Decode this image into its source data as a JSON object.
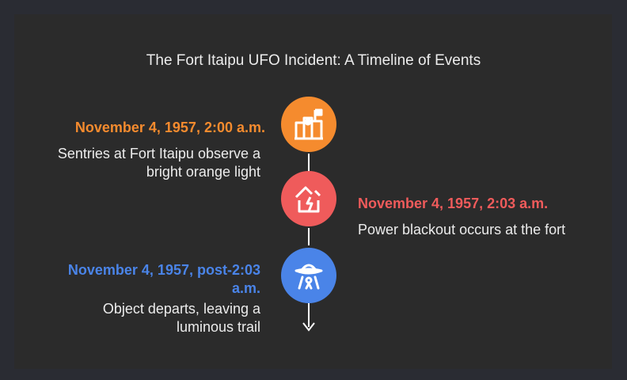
{
  "title": "The Fort Itaipu UFO Incident: A Timeline of Events",
  "events": [
    {
      "date": "November 4, 1957, 2:00 a.m.",
      "description": "Sentries at Fort Itaipu observe a bright orange light",
      "color": "#f58b2e",
      "icon": "fort-icon",
      "side": "left"
    },
    {
      "date": "November 4, 1957, 2:03 a.m.",
      "description": "Power blackout occurs at the fort",
      "color": "#ef5b5b",
      "icon": "broken-house-icon",
      "side": "right"
    },
    {
      "date": "November 4, 1957, post-2:03 a.m.",
      "description": "Object departs, leaving a luminous trail",
      "color": "#4a84e8",
      "icon": "ufo-icon",
      "side": "left"
    }
  ],
  "colors": {
    "background": "#2a2c33",
    "panel": "#2b2b2b",
    "text": "#ececec",
    "connector": "#ffffff"
  }
}
